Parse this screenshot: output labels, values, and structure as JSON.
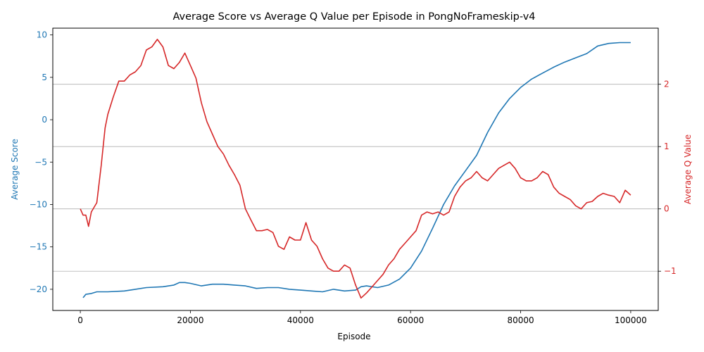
{
  "chart_data": {
    "type": "line",
    "title": "Average Score vs Average Q Value per Episode in PongNoFrameskip-v4",
    "xlabel": "Episode",
    "ylabel_left": "Average Score",
    "ylabel_right": "Average Q Value",
    "xlim": [
      -5000,
      105000
    ],
    "ylim_left": [
      -22.5,
      10.8
    ],
    "ylim_right": [
      -1.63,
      2.9
    ],
    "x_ticks": [
      0,
      20000,
      40000,
      60000,
      80000,
      100000
    ],
    "x_tick_labels": [
      "0",
      "20000",
      "40000",
      "60000",
      "80000",
      "100000"
    ],
    "y_left_ticks": [
      -20,
      -15,
      -10,
      -5,
      0,
      5,
      10
    ],
    "y_left_tick_labels": [
      "−20",
      "−15",
      "−10",
      "−5",
      "0",
      "5",
      "10"
    ],
    "y_right_ticks": [
      -1,
      0,
      1,
      2
    ],
    "y_right_tick_labels": [
      "−1",
      "0",
      "1",
      "2"
    ],
    "grid": "horizontal lines at right-axis ticks",
    "colors": {
      "score": "#1f77b4",
      "q_value": "#d62728",
      "grid": "#b0b0b0",
      "axis": "#000000"
    },
    "series": [
      {
        "name": "Average Score",
        "axis": "left",
        "color": "#1f77b4",
        "x": [
          500,
          1000,
          2000,
          3000,
          5000,
          8000,
          10000,
          12000,
          15000,
          17000,
          18000,
          19000,
          20000,
          22000,
          24000,
          26000,
          28000,
          30000,
          32000,
          34000,
          36000,
          38000,
          40000,
          42000,
          44000,
          46000,
          48000,
          50000,
          51000,
          52000,
          54000,
          56000,
          58000,
          60000,
          62000,
          64000,
          66000,
          68000,
          70000,
          72000,
          74000,
          76000,
          78000,
          80000,
          82000,
          84000,
          86000,
          88000,
          90000,
          92000,
          94000,
          96000,
          98000,
          100000
        ],
        "y": [
          -21.0,
          -20.6,
          -20.5,
          -20.3,
          -20.3,
          -20.2,
          -20.0,
          -19.8,
          -19.7,
          -19.5,
          -19.2,
          -19.2,
          -19.3,
          -19.6,
          -19.4,
          -19.4,
          -19.5,
          -19.6,
          -19.9,
          -19.8,
          -19.8,
          -20.0,
          -20.1,
          -20.2,
          -20.3,
          -20.0,
          -20.2,
          -20.1,
          -19.7,
          -19.6,
          -19.8,
          -19.5,
          -18.8,
          -17.5,
          -15.5,
          -12.8,
          -10.0,
          -7.8,
          -6.0,
          -4.2,
          -1.5,
          0.8,
          2.5,
          3.8,
          4.8,
          5.5,
          6.2,
          6.8,
          7.3,
          7.8,
          8.7,
          9.0,
          9.1,
          9.1
        ]
      },
      {
        "name": "Average Q Value",
        "axis": "right",
        "color": "#d62728",
        "x": [
          0,
          500,
          1000,
          1500,
          2000,
          3000,
          3800,
          4500,
          5000,
          6000,
          7000,
          8000,
          9000,
          10000,
          11000,
          12000,
          13000,
          14000,
          15000,
          16000,
          17000,
          18000,
          19000,
          20000,
          21000,
          22000,
          23000,
          24000,
          25000,
          26000,
          27000,
          28000,
          29000,
          30000,
          31000,
          32000,
          33000,
          34000,
          35000,
          36000,
          37000,
          38000,
          39000,
          40000,
          41000,
          42000,
          43000,
          44000,
          45000,
          46000,
          47000,
          48000,
          49000,
          50000,
          51000,
          52000,
          53000,
          54000,
          55000,
          56000,
          57000,
          58000,
          59000,
          60000,
          61000,
          62000,
          63000,
          64000,
          65000,
          66000,
          67000,
          68000,
          69000,
          70000,
          71000,
          72000,
          73000,
          74000,
          75000,
          76000,
          77000,
          78000,
          79000,
          80000,
          81000,
          82000,
          83000,
          84000,
          85000,
          86000,
          87000,
          88000,
          89000,
          90000,
          91000,
          92000,
          93000,
          94000,
          95000,
          96000,
          97000,
          98000,
          99000,
          100000
        ],
        "y": [
          0.0,
          -0.1,
          -0.1,
          -0.28,
          -0.05,
          0.1,
          0.7,
          1.3,
          1.52,
          1.8,
          2.05,
          2.05,
          2.15,
          2.2,
          2.3,
          2.55,
          2.6,
          2.72,
          2.6,
          2.3,
          2.25,
          2.35,
          2.5,
          2.3,
          2.1,
          1.7,
          1.4,
          1.2,
          1.0,
          0.88,
          0.7,
          0.55,
          0.38,
          0.0,
          -0.18,
          -0.35,
          -0.35,
          -0.33,
          -0.38,
          -0.6,
          -0.65,
          -0.45,
          -0.5,
          -0.5,
          -0.22,
          -0.5,
          -0.6,
          -0.8,
          -0.95,
          -1.0,
          -1.0,
          -0.9,
          -0.95,
          -1.22,
          -1.43,
          -1.35,
          -1.25,
          -1.15,
          -1.05,
          -0.9,
          -0.8,
          -0.65,
          -0.55,
          -0.45,
          -0.35,
          -0.1,
          -0.05,
          -0.08,
          -0.05,
          -0.1,
          -0.05,
          0.2,
          0.35,
          0.45,
          0.5,
          0.6,
          0.5,
          0.45,
          0.55,
          0.65,
          0.7,
          0.75,
          0.65,
          0.5,
          0.45,
          0.45,
          0.5,
          0.6,
          0.55,
          0.35,
          0.25,
          0.2,
          0.15,
          0.05,
          0.0,
          0.1,
          0.12,
          0.2,
          0.25,
          0.22,
          0.2,
          0.1,
          0.3,
          0.22
        ]
      }
    ]
  }
}
